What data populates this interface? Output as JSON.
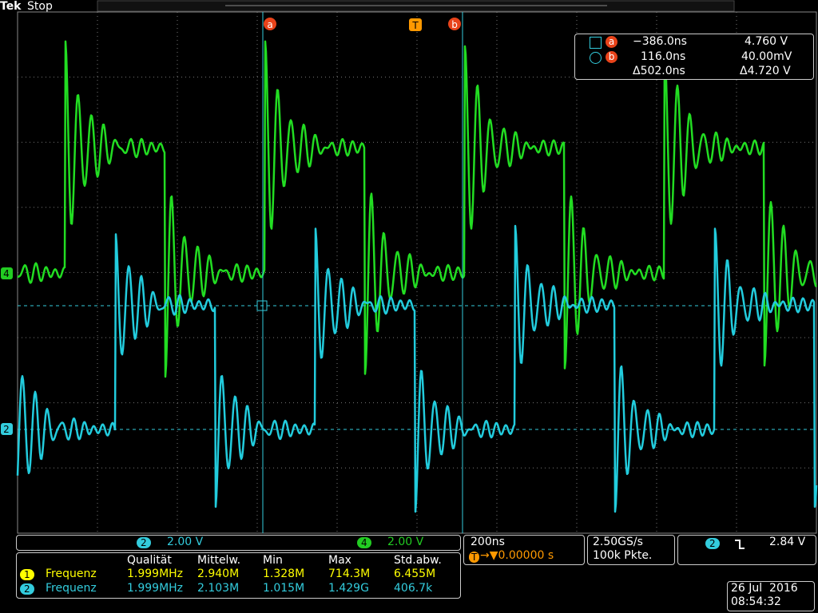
{
  "header": {
    "brand": "Tek",
    "status": "Stop"
  },
  "markers": {
    "cursor_a": "a",
    "trigger": "T",
    "cursor_b": "b"
  },
  "channel_markers": {
    "ch4": "4",
    "ch2": "2"
  },
  "cursor_readout": {
    "rows": [
      [
        "a",
        "−386.0ns",
        "4.760 V"
      ],
      [
        "b",
        "116.0ns",
        "40.00mV"
      ],
      [
        "Δ502.0ns",
        "Δ4.720 V"
      ]
    ]
  },
  "channel_scales": [
    {
      "channel": "2",
      "scale": "2.00 V"
    },
    {
      "channel": "4",
      "scale": "2.00 V"
    }
  ],
  "measurements": {
    "header": [
      "Qualität",
      "Mittelw.",
      "Min",
      "Max",
      "Std.abw."
    ],
    "rows": [
      [
        "1",
        "Frequenz",
        "1.999MHz",
        "2.940M",
        "1.328M",
        "714.3M",
        "6.455M"
      ],
      [
        "2",
        "Frequenz",
        "1.999MHz",
        "2.103M",
        "1.015M",
        "1.429G",
        "406.7k"
      ]
    ]
  },
  "timebase": {
    "scale": "200ns",
    "trigger_badge": "T",
    "position": "→▼0.00000 s"
  },
  "acquisition": {
    "rate": "2.50GS/s",
    "record": "100k Pkte."
  },
  "trigger": {
    "channel": "2",
    "level": "2.84 V"
  },
  "datetime": {
    "date": "26 Jul  2016",
    "time": "08:54:32"
  }
}
